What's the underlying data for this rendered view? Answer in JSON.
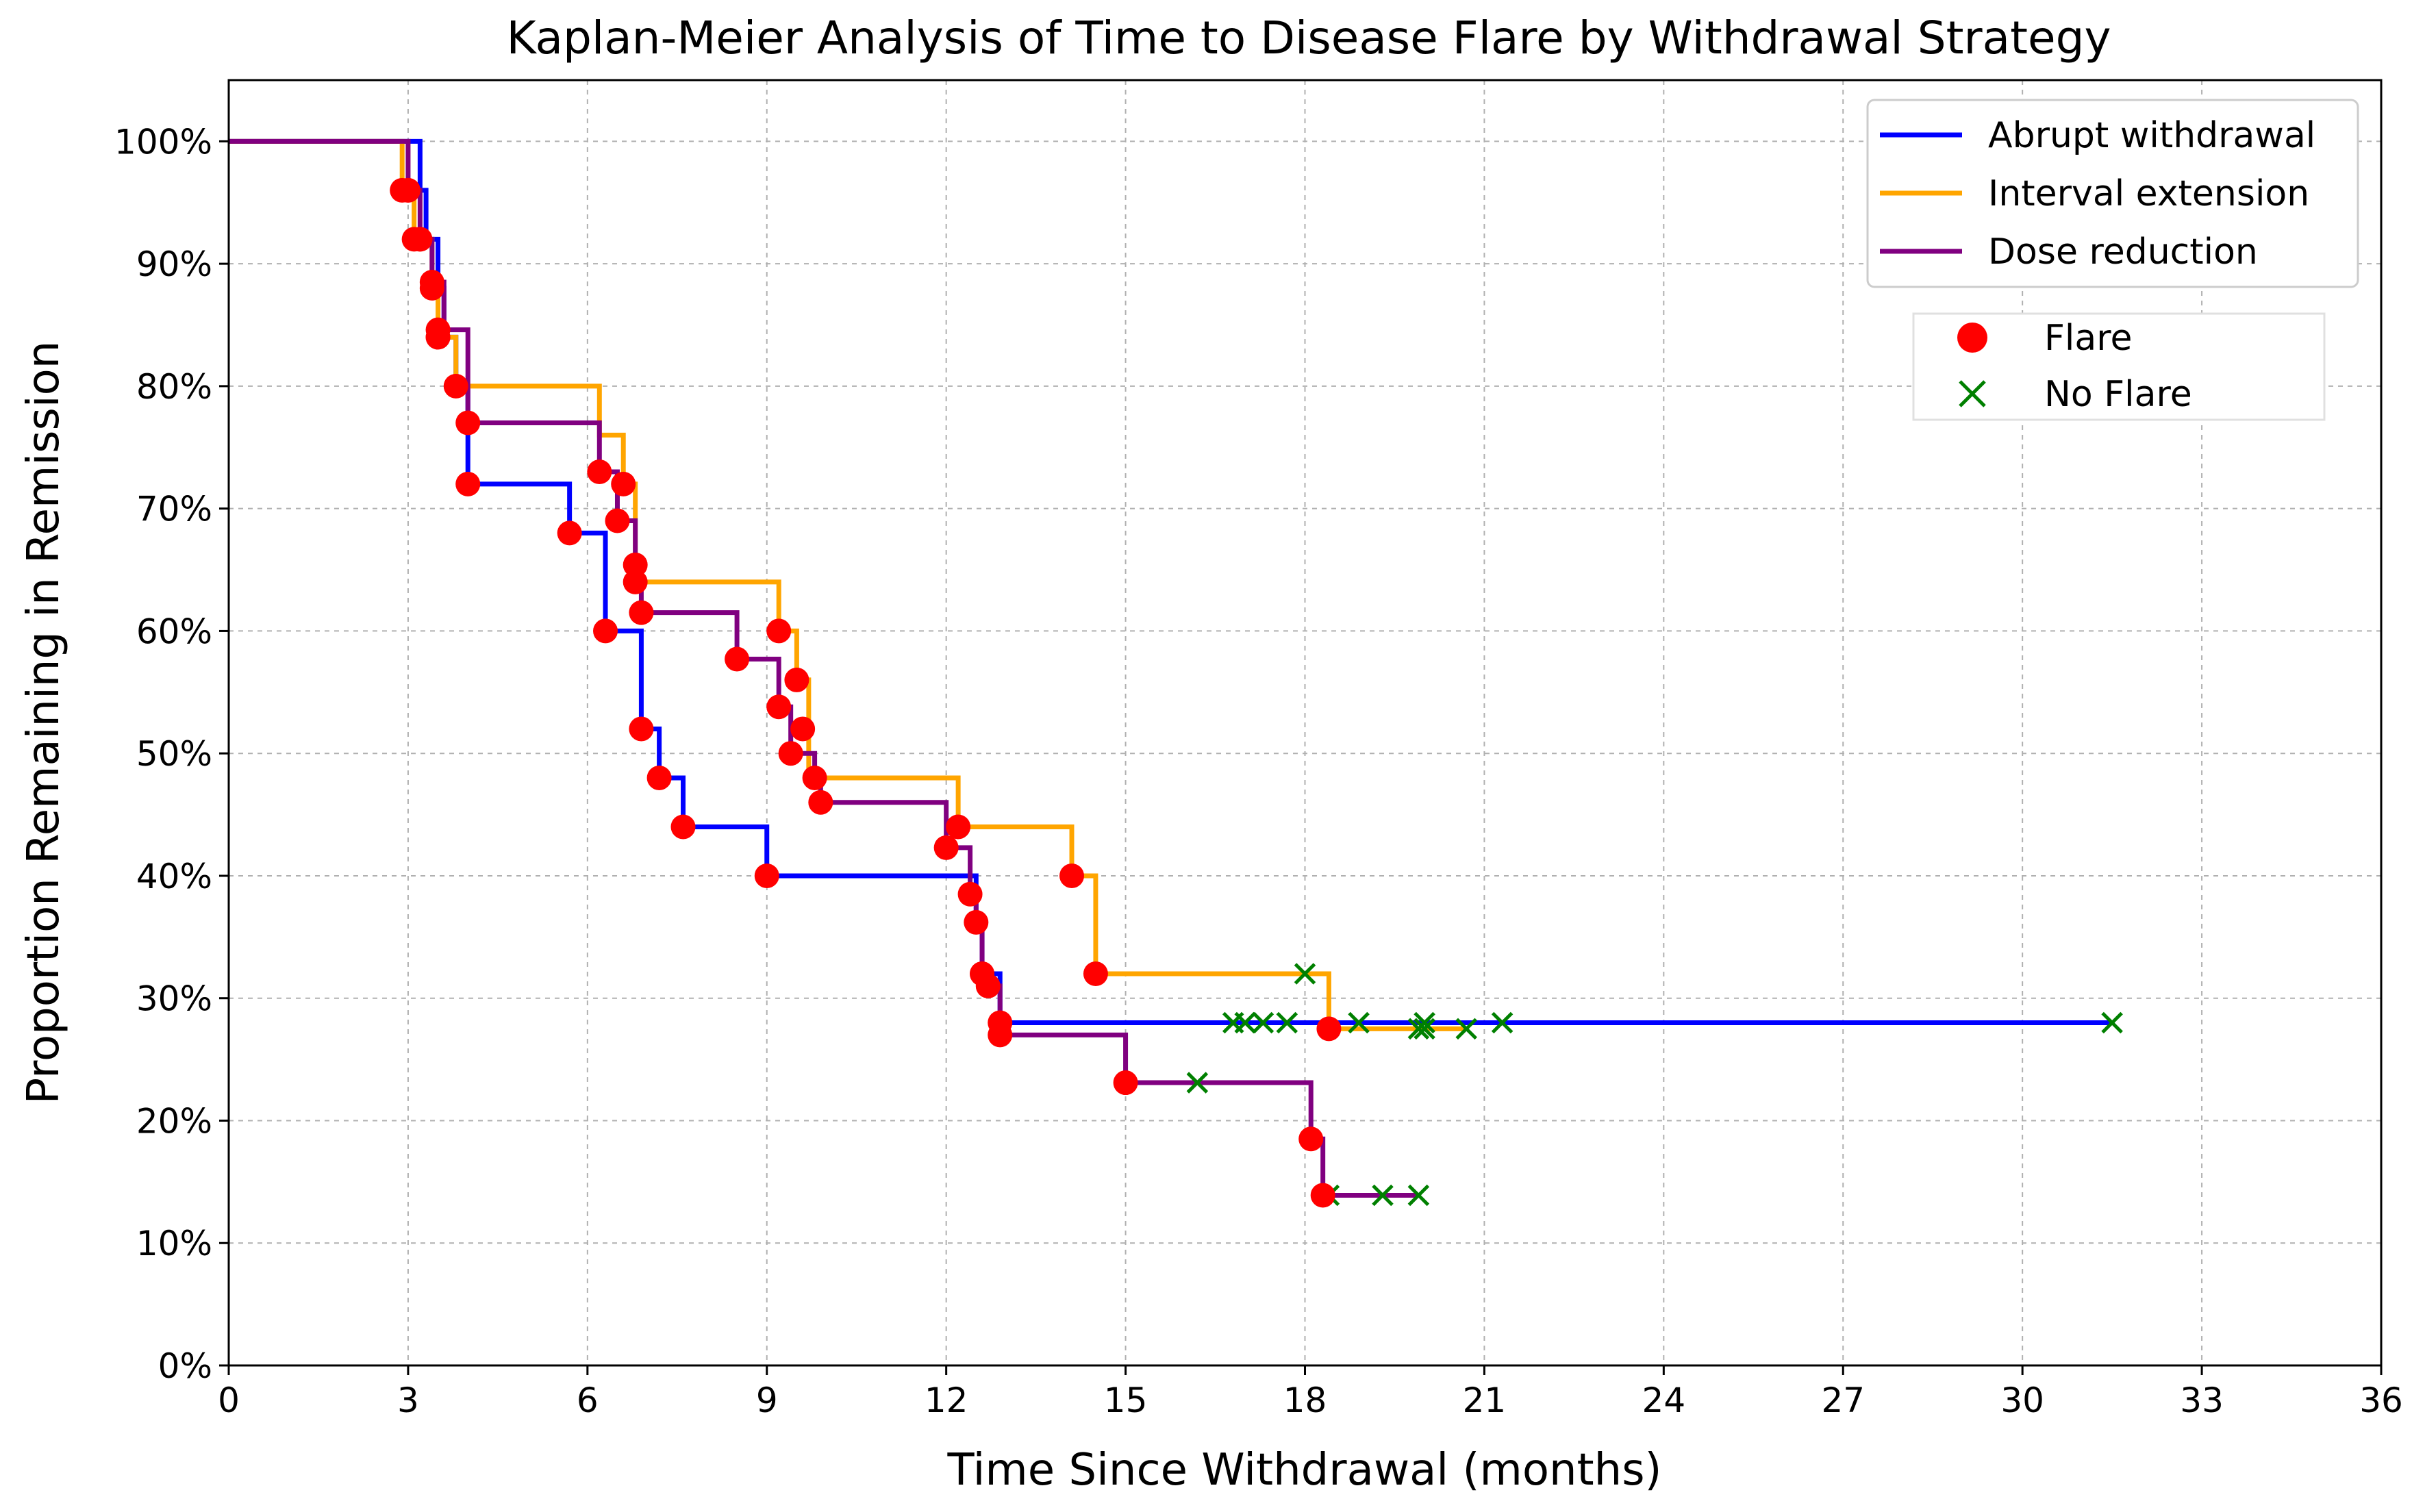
{
  "chart_data": {
    "type": "line",
    "title": "Kaplan-Meier Analysis of Time to Disease Flare by Withdrawal Strategy",
    "xlabel": "Time Since Withdrawal (months)",
    "ylabel": "Proportion Remaining in Remission",
    "xlim": [
      0,
      36
    ],
    "ylim": [
      0,
      1.05
    ],
    "xticks": [
      0,
      3,
      6,
      9,
      12,
      15,
      18,
      21,
      24,
      27,
      30,
      33,
      36
    ],
    "xtick_labels": [
      "0",
      "3",
      "6",
      "9",
      "12",
      "15",
      "18",
      "21",
      "24",
      "27",
      "30",
      "33",
      "36"
    ],
    "yticks": [
      0,
      0.1,
      0.2,
      0.3,
      0.4,
      0.5,
      0.6,
      0.7,
      0.8,
      0.9,
      1.0
    ],
    "ytick_labels": [
      "0%",
      "10%",
      "20%",
      "30%",
      "40%",
      "50%",
      "60%",
      "70%",
      "80%",
      "90%",
      "100%"
    ],
    "grid": true,
    "legend_position": "top-right",
    "series": [
      {
        "name": "Abrupt withdrawal",
        "color": "#0000ff",
        "step_x": [
          0,
          3.2,
          3.3,
          3.5,
          3.6,
          3.8,
          4.0,
          5.7,
          6.3,
          6.9,
          7.2,
          7.6,
          9.0,
          12.3,
          12.5,
          12.6,
          12.7,
          12.9,
          31.5
        ],
        "step_y": [
          1.0,
          0.96,
          0.92,
          0.88,
          0.84,
          0.8,
          0.72,
          0.68,
          0.6,
          0.52,
          0.48,
          0.44,
          0.4,
          0.4,
          0.36,
          0.32,
          0.32,
          0.28,
          0.28
        ],
        "flares": [
          [
            3.0,
            0.96
          ],
          [
            3.2,
            0.92
          ],
          [
            3.4,
            0.88
          ],
          [
            3.5,
            0.84
          ],
          [
            4.0,
            0.72
          ],
          [
            5.7,
            0.68
          ],
          [
            6.3,
            0.6
          ],
          [
            6.9,
            0.52
          ],
          [
            7.2,
            0.48
          ],
          [
            7.6,
            0.44
          ],
          [
            9.0,
            0.4
          ],
          [
            12.6,
            0.32
          ],
          [
            12.9,
            0.28
          ]
        ],
        "censored": [
          [
            16.8,
            0.28
          ],
          [
            17.0,
            0.28
          ],
          [
            17.3,
            0.28
          ],
          [
            17.7,
            0.28
          ],
          [
            18.9,
            0.28
          ],
          [
            20.0,
            0.28
          ],
          [
            21.3,
            0.28
          ],
          [
            31.5,
            0.28
          ]
        ]
      },
      {
        "name": "Interval extension",
        "color": "#ffa500",
        "step_x": [
          0,
          2.9,
          3.1,
          3.4,
          3.5,
          3.8,
          6.2,
          6.6,
          6.8,
          9.2,
          9.5,
          9.7,
          12.2,
          14.1,
          14.5,
          18.4,
          20.7
        ],
        "step_y": [
          1.0,
          0.96,
          0.92,
          0.88,
          0.84,
          0.8,
          0.76,
          0.72,
          0.64,
          0.6,
          0.56,
          0.48,
          0.44,
          0.4,
          0.32,
          0.275,
          0.275
        ],
        "flares": [
          [
            2.9,
            0.96
          ],
          [
            3.1,
            0.92
          ],
          [
            3.5,
            0.84
          ],
          [
            3.8,
            0.8
          ],
          [
            6.6,
            0.72
          ],
          [
            6.8,
            0.64
          ],
          [
            9.2,
            0.6
          ],
          [
            9.5,
            0.56
          ],
          [
            9.6,
            0.52
          ],
          [
            12.2,
            0.44
          ],
          [
            14.1,
            0.4
          ],
          [
            14.5,
            0.32
          ],
          [
            18.4,
            0.275
          ]
        ],
        "censored": [
          [
            18.0,
            0.32
          ],
          [
            19.9,
            0.275
          ],
          [
            20.0,
            0.275
          ],
          [
            20.7,
            0.275
          ]
        ]
      },
      {
        "name": "Dose reduction",
        "color": "#800080",
        "step_x": [
          0,
          3.0,
          3.2,
          3.4,
          3.6,
          4.0,
          6.2,
          6.5,
          6.8,
          6.9,
          8.5,
          9.2,
          9.4,
          9.8,
          9.9,
          12.0,
          12.4,
          12.5,
          12.6,
          12.7,
          12.9,
          15.0,
          18.1,
          18.3,
          19.9
        ],
        "step_y": [
          1.0,
          0.96,
          0.92,
          0.885,
          0.846,
          0.77,
          0.73,
          0.69,
          0.654,
          0.615,
          0.577,
          0.538,
          0.5,
          0.48,
          0.46,
          0.423,
          0.385,
          0.362,
          0.32,
          0.31,
          0.27,
          0.231,
          0.185,
          0.139,
          0.139
        ],
        "flares": [
          [
            3.0,
            0.96
          ],
          [
            3.2,
            0.92
          ],
          [
            3.4,
            0.885
          ],
          [
            3.5,
            0.846
          ],
          [
            4.0,
            0.77
          ],
          [
            6.2,
            0.73
          ],
          [
            6.5,
            0.69
          ],
          [
            6.8,
            0.654
          ],
          [
            6.9,
            0.615
          ],
          [
            8.5,
            0.577
          ],
          [
            9.2,
            0.538
          ],
          [
            9.4,
            0.5
          ],
          [
            9.8,
            0.48
          ],
          [
            9.9,
            0.46
          ],
          [
            12.0,
            0.423
          ],
          [
            12.4,
            0.385
          ],
          [
            12.5,
            0.362
          ],
          [
            12.6,
            0.32
          ],
          [
            12.7,
            0.31
          ],
          [
            12.9,
            0.27
          ],
          [
            15.0,
            0.231
          ],
          [
            18.1,
            0.185
          ],
          [
            18.3,
            0.139
          ]
        ],
        "censored": [
          [
            16.2,
            0.231
          ],
          [
            18.4,
            0.139
          ],
          [
            19.3,
            0.139
          ],
          [
            19.9,
            0.139
          ]
        ]
      }
    ],
    "marker_legend": [
      {
        "label": "Flare",
        "color": "#ff0000",
        "marker": "circle"
      },
      {
        "label": "No Flare",
        "color": "#008000",
        "marker": "x"
      }
    ]
  }
}
